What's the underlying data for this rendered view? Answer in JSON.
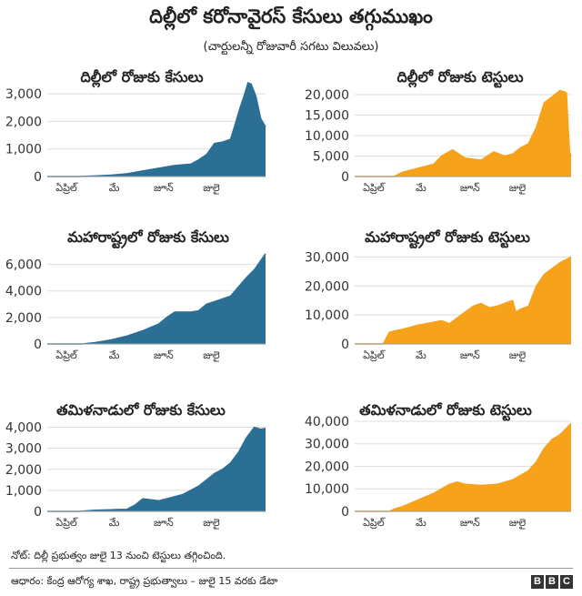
{
  "header": {
    "title": "దిల్లీలో కరోనావైరస్ కేసులు తగ్గుముఖం",
    "subtitle": "(చార్టులన్నీ రోజువారీ సగటు విలువలు)"
  },
  "footer": {
    "note": "నోట్: దిల్లీ ప్రభుత్వం జులై 13 నుంచి టెస్టులు తగ్గించింది.",
    "source": "ఆధారం: కేంద్ర ఆరోగ్య శాఖ, రాష్ట్ర ప్రభుత్వాలు – జులై 15 వరకు డేటా",
    "logo": [
      "B",
      "B",
      "C"
    ]
  },
  "colors": {
    "cases": "#2c6f95",
    "tests": "#f7a21b"
  },
  "chart_data": [
    {
      "type": "area",
      "title": "దిల్లీలో రోజుకు కేసులు",
      "color": "#2c6f95",
      "yticks": [
        0,
        1000,
        2000,
        3000
      ],
      "ytick_labels": [
        "0",
        "1,000",
        "2,000",
        "3,000"
      ],
      "ylim": [
        0,
        3500
      ],
      "xticks": [
        "ఏప్రిల్",
        "మే",
        "జూన్",
        "జులై"
      ],
      "x": [
        0,
        20,
        30,
        40,
        50,
        60,
        70,
        80,
        90,
        95,
        100,
        105,
        110,
        115,
        118,
        121,
        124,
        126,
        128,
        131,
        134,
        137
      ],
      "values": [
        0,
        0,
        20,
        50,
        100,
        200,
        300,
        400,
        450,
        600,
        800,
        1200,
        1250,
        1350,
        1900,
        2500,
        3000,
        3400,
        3350,
        2900,
        2100,
        1800
      ]
    },
    {
      "type": "area",
      "title": "దిల్లీలో రోజుకు టెస్టులు",
      "color": "#f7a21b",
      "yticks": [
        0,
        5000,
        10000,
        15000,
        20000
      ],
      "ytick_labels": [
        "0",
        "5,000",
        "10,000",
        "15,000",
        "20,000"
      ],
      "ylim": [
        0,
        22000
      ],
      "xticks": [
        "ఏప్రిల్",
        "మే",
        "జూన్",
        "జులై"
      ],
      "x": [
        0,
        25,
        30,
        40,
        50,
        55,
        62,
        70,
        80,
        88,
        95,
        100,
        105,
        110,
        115,
        120,
        125,
        130,
        134,
        136,
        137
      ],
      "values": [
        0,
        0,
        1000,
        2000,
        3000,
        5000,
        6500,
        4500,
        4000,
        6000,
        5000,
        5500,
        7000,
        8000,
        12000,
        18000,
        19500,
        21000,
        20500,
        6000,
        5000
      ]
    },
    {
      "type": "area",
      "title": "మహారాష్ట్రలో రోజుకు కేసులు",
      "color": "#2c6f95",
      "yticks": [
        0,
        2000,
        4000,
        6000
      ],
      "ytick_labels": [
        "0",
        "2,000",
        "4,000",
        "6,000"
      ],
      "ylim": [
        0,
        7000
      ],
      "xticks": [
        "ఏప్రిల్",
        "మే",
        "జూన్",
        "జులై"
      ],
      "x": [
        0,
        22,
        30,
        40,
        50,
        60,
        70,
        75,
        80,
        90,
        95,
        100,
        105,
        110,
        115,
        120,
        125,
        130,
        137
      ],
      "values": [
        0,
        0,
        100,
        300,
        600,
        1000,
        1500,
        2000,
        2400,
        2400,
        2500,
        3000,
        3200,
        3400,
        3600,
        4300,
        5000,
        5600,
        6800
      ]
    },
    {
      "type": "area",
      "title": "మహారాష్ట్రలో రోజుకు టెస్టులు",
      "color": "#f7a21b",
      "yticks": [
        0,
        10000,
        20000,
        30000
      ],
      "ytick_labels": [
        "0",
        "10,000",
        "20,000",
        "30,000"
      ],
      "ylim": [
        0,
        32000
      ],
      "xticks": [
        "ఏప్రిల్",
        "మే",
        "జూన్",
        "జులై"
      ],
      "x": [
        0,
        18,
        22,
        25,
        30,
        40,
        50,
        55,
        60,
        65,
        70,
        75,
        80,
        85,
        90,
        95,
        100,
        102,
        105,
        110,
        115,
        120,
        125,
        130,
        137
      ],
      "values": [
        0,
        0,
        4000,
        4500,
        5000,
        6500,
        7500,
        8000,
        7000,
        9000,
        11000,
        13000,
        14000,
        12500,
        13000,
        14000,
        15000,
        11000,
        12000,
        13000,
        20000,
        24000,
        26000,
        28000,
        30000
      ]
    },
    {
      "type": "area",
      "title": "తమిళనాడులో రోజుకు కేసులు",
      "color": "#2c6f95",
      "yticks": [
        0,
        1000,
        2000,
        3000,
        4000
      ],
      "ytick_labels": [
        "0",
        "1,000",
        "2,000",
        "3,000",
        "4,000"
      ],
      "ylim": [
        0,
        4500
      ],
      "xticks": [
        "ఏప్రిల్",
        "మే",
        "జూన్",
        "జులై"
      ],
      "x": [
        0,
        20,
        30,
        40,
        50,
        55,
        60,
        65,
        70,
        75,
        80,
        85,
        90,
        95,
        100,
        105,
        110,
        115,
        120,
        125,
        130,
        134,
        137
      ],
      "values": [
        0,
        0,
        50,
        80,
        100,
        300,
        600,
        550,
        500,
        600,
        700,
        800,
        1000,
        1200,
        1500,
        1800,
        2000,
        2300,
        2800,
        3500,
        4000,
        3900,
        3950
      ]
    },
    {
      "type": "area",
      "title": "తమిళనాడులో రోజుకు టెస్టులు",
      "color": "#f7a21b",
      "yticks": [
        0,
        10000,
        20000,
        30000,
        40000
      ],
      "ytick_labels": [
        "0",
        "10,000",
        "20,000",
        "30,000",
        "40,000"
      ],
      "ylim": [
        0,
        42000
      ],
      "xticks": [
        "ఏప్రిల్",
        "మే",
        "జూన్",
        "జులై"
      ],
      "x": [
        0,
        22,
        25,
        30,
        40,
        50,
        60,
        65,
        70,
        80,
        90,
        95,
        100,
        105,
        110,
        115,
        120,
        125,
        130,
        137
      ],
      "values": [
        0,
        0,
        1000,
        2000,
        5000,
        8000,
        12000,
        13000,
        12000,
        11500,
        12000,
        13000,
        14000,
        16000,
        18000,
        22000,
        28000,
        32000,
        34000,
        39000
      ]
    }
  ]
}
